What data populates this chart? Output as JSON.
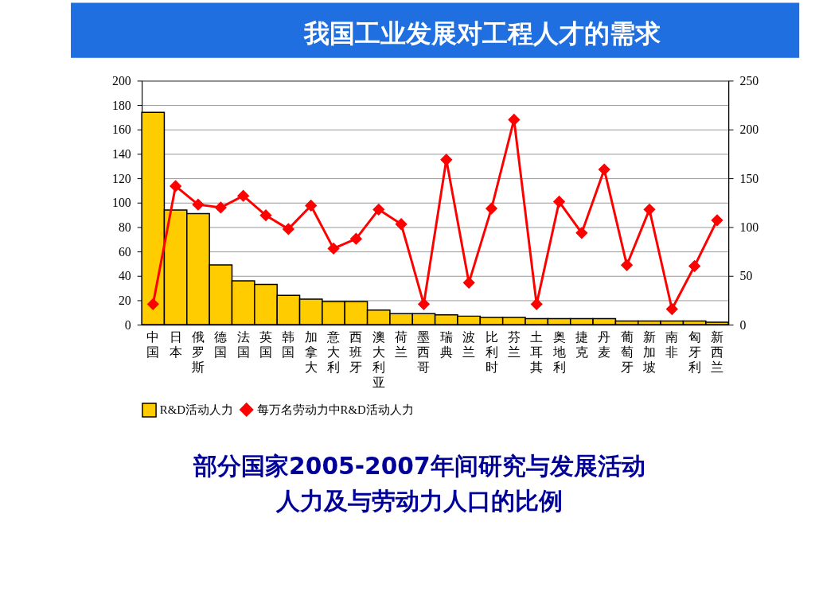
{
  "chart_data": {
    "type": "bar",
    "title": "我国工业发展对工程人才的需求",
    "categories": [
      "中国",
      "日本",
      "俄罗斯",
      "德国",
      "法国",
      "英国",
      "韩国",
      "加拿大",
      "意大利",
      "西班牙",
      "澳大利亚",
      "荷兰",
      "墨西哥",
      "瑞典",
      "波兰",
      "比利时",
      "芬兰",
      "土耳其",
      "奥地利",
      "捷克",
      "丹麦",
      "葡萄牙",
      "新加坡",
      "南非",
      "匈牙利",
      "新西兰"
    ],
    "series": [
      {
        "name": "R&D活动人力",
        "color": "#ffcc00",
        "values": [
          174,
          94,
          91,
          49,
          36,
          33,
          24,
          21,
          19,
          19,
          12,
          9,
          9,
          8,
          7,
          6,
          6,
          5,
          5,
          5,
          5,
          3,
          3,
          3,
          3,
          2
        ]
      },
      {
        "name": "每万名劳动力中R&D活动人力",
        "type": "line",
        "axis": "y2",
        "color": "#ff0000",
        "values": [
          21,
          142,
          123,
          120,
          132,
          112,
          98,
          122,
          78,
          88,
          118,
          103,
          21,
          169,
          43,
          119,
          210,
          21,
          126,
          94,
          159,
          61,
          118,
          16,
          60,
          107
        ]
      }
    ],
    "ylim": [
      0,
      200
    ],
    "yticks": [
      0,
      20,
      40,
      60,
      80,
      100,
      120,
      140,
      160,
      180,
      200
    ],
    "y2lim": [
      0,
      250
    ],
    "y2ticks": [
      0,
      50,
      100,
      150,
      200,
      250
    ],
    "grid": "y",
    "legend": "bottom",
    "marker": "diamond",
    "line_style": "solid",
    "annotations": [
      "部分国家2005-2007年间研究与发展活动",
      "人力及与劳动力人口的比例"
    ]
  }
}
